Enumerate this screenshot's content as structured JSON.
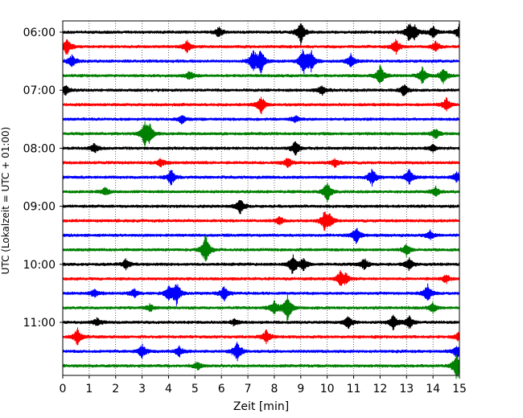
{
  "chart_data": {
    "type": "line",
    "title": "",
    "xlabel": "Zeit  [min]",
    "ylabel": "UTC (Lokalzeit = UTC + 01:00)",
    "xlim": [
      0,
      15
    ],
    "x_ticks": [
      "0",
      "1",
      "2",
      "3",
      "4",
      "5",
      "6",
      "7",
      "8",
      "9",
      "10",
      "11",
      "12",
      "13",
      "14",
      "15"
    ],
    "y_ticks": [
      "06:00",
      "07:00",
      "08:00",
      "09:00",
      "10:00",
      "11:00"
    ],
    "grid": "vertical dotted lines at each minute",
    "trace_interval_min": 15,
    "trace_color_cycle": [
      "#000000",
      "#ff0000",
      "#0000ff",
      "#008000"
    ],
    "series": [
      {
        "start": "06:00",
        "color": "#000000",
        "events": [
          [
            5.9,
            0.6
          ],
          [
            9.0,
            1.4
          ],
          [
            13.1,
            1.0
          ],
          [
            13.3,
            0.7
          ],
          [
            14.0,
            0.7
          ],
          [
            15.0,
            0.9
          ]
        ]
      },
      {
        "start": "06:15",
        "color": "#ff0000",
        "events": [
          [
            0.15,
            1.1
          ],
          [
            4.7,
            0.7
          ],
          [
            12.6,
            0.8
          ],
          [
            14.1,
            0.6
          ]
        ]
      },
      {
        "start": "06:30",
        "color": "#0000ff",
        "events": [
          [
            0.35,
            0.7
          ],
          [
            7.2,
            1.3
          ],
          [
            7.5,
            1.4
          ],
          [
            9.1,
            1.5
          ],
          [
            9.4,
            1.1
          ],
          [
            10.9,
            0.8
          ]
        ]
      },
      {
        "start": "06:45",
        "color": "#008000",
        "events": [
          [
            4.8,
            0.6
          ],
          [
            12.0,
            1.2
          ],
          [
            13.6,
            1.0
          ],
          [
            14.4,
            1.0
          ]
        ]
      },
      {
        "start": "07:00",
        "color": "#000000",
        "events": [
          [
            0.1,
            0.6
          ],
          [
            9.8,
            0.6
          ],
          [
            12.9,
            0.7
          ]
        ]
      },
      {
        "start": "07:15",
        "color": "#ff0000",
        "events": [
          [
            7.5,
            1.1
          ],
          [
            14.5,
            0.8
          ]
        ]
      },
      {
        "start": "07:30",
        "color": "#0000ff",
        "events": [
          [
            4.5,
            0.5
          ],
          [
            8.8,
            0.4
          ]
        ]
      },
      {
        "start": "07:45",
        "color": "#008000",
        "events": [
          [
            3.1,
            1.3
          ],
          [
            3.3,
            0.9
          ],
          [
            14.1,
            0.6
          ]
        ]
      },
      {
        "start": "08:00",
        "color": "#000000",
        "events": [
          [
            1.2,
            0.6
          ],
          [
            8.8,
            0.9
          ],
          [
            14.0,
            0.4
          ]
        ]
      },
      {
        "start": "08:15",
        "color": "#ff0000",
        "events": [
          [
            3.7,
            0.5
          ],
          [
            8.5,
            0.6
          ],
          [
            10.3,
            0.5
          ]
        ]
      },
      {
        "start": "08:30",
        "color": "#0000ff",
        "events": [
          [
            4.1,
            0.9
          ],
          [
            11.7,
            1.0
          ],
          [
            13.1,
            0.9
          ],
          [
            14.9,
            0.6
          ]
        ]
      },
      {
        "start": "08:45",
        "color": "#008000",
        "events": [
          [
            1.6,
            0.5
          ],
          [
            10.0,
            1.2
          ],
          [
            14.1,
            0.6
          ]
        ]
      },
      {
        "start": "09:00",
        "color": "#000000",
        "events": [
          [
            6.7,
            1.0
          ]
        ]
      },
      {
        "start": "09:15",
        "color": "#ff0000",
        "events": [
          [
            9.9,
            1.0
          ],
          [
            10.1,
            0.7
          ],
          [
            8.2,
            0.5
          ]
        ]
      },
      {
        "start": "09:30",
        "color": "#0000ff",
        "events": [
          [
            11.1,
            1.0
          ],
          [
            13.9,
            0.5
          ]
        ]
      },
      {
        "start": "09:45",
        "color": "#008000",
        "events": [
          [
            5.4,
            1.8
          ],
          [
            13.0,
            0.7
          ]
        ]
      },
      {
        "start": "10:00",
        "color": "#000000",
        "events": [
          [
            8.7,
            1.2
          ],
          [
            9.1,
            0.7
          ],
          [
            11.4,
            0.7
          ],
          [
            13.1,
            0.7
          ],
          [
            2.4,
            0.6
          ]
        ]
      },
      {
        "start": "10:15",
        "color": "#ff0000",
        "events": [
          [
            10.5,
            0.8
          ],
          [
            10.7,
            0.5
          ],
          [
            14.5,
            0.5
          ]
        ]
      },
      {
        "start": "10:30",
        "color": "#0000ff",
        "events": [
          [
            4.3,
            1.4
          ],
          [
            4.0,
            0.8
          ],
          [
            6.1,
            0.9
          ],
          [
            13.8,
            1.0
          ],
          [
            1.2,
            0.5
          ],
          [
            2.7,
            0.5
          ]
        ]
      },
      {
        "start": "10:45",
        "color": "#008000",
        "events": [
          [
            8.5,
            1.6
          ],
          [
            8.0,
            0.8
          ],
          [
            14.0,
            0.6
          ],
          [
            3.3,
            0.4
          ]
        ]
      },
      {
        "start": "11:00",
        "color": "#000000",
        "events": [
          [
            10.8,
            0.8
          ],
          [
            12.5,
            0.9
          ],
          [
            13.1,
            0.8
          ],
          [
            1.3,
            0.5
          ],
          [
            6.5,
            0.4
          ]
        ]
      },
      {
        "start": "11:15",
        "color": "#ff0000",
        "events": [
          [
            0.55,
            1.0
          ],
          [
            7.7,
            0.8
          ],
          [
            15.0,
            0.6
          ]
        ]
      },
      {
        "start": "11:30",
        "color": "#0000ff",
        "events": [
          [
            6.6,
            1.3
          ],
          [
            3.0,
            0.8
          ],
          [
            4.4,
            0.6
          ],
          [
            14.9,
            0.8
          ]
        ]
      },
      {
        "start": "11:45",
        "color": "#008000",
        "events": [
          [
            14.9,
            1.6
          ],
          [
            5.1,
            0.5
          ]
        ]
      }
    ]
  }
}
